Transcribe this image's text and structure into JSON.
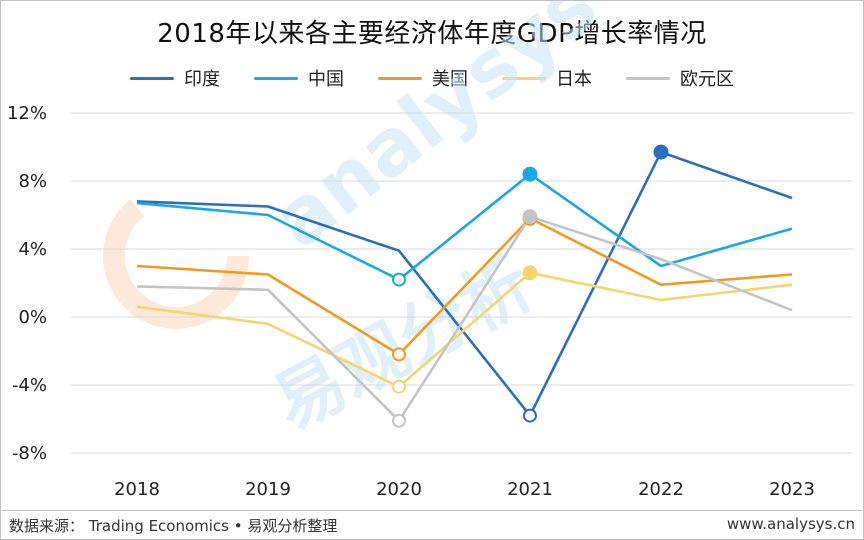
{
  "title": "2018年以来各主要经济体年度GDP增长率情况",
  "source_text": "数据来源：  Trading Economics • 易观分析整理",
  "site_text": "www.analysys.cn",
  "watermark": {
    "latin": "analysys",
    "cjk": "易观分析",
    "logo_color": "#fbe3cf"
  },
  "chart_data": {
    "type": "line",
    "title": "2018年以来各主要经济体年度GDP增长率情况",
    "xlabel": "",
    "ylabel": "",
    "categories": [
      "2018",
      "2019",
      "2020",
      "2021",
      "2022",
      "2023"
    ],
    "ylim": [
      -8,
      12
    ],
    "yticks": [
      -8,
      -4,
      0,
      4,
      8,
      12
    ],
    "ytick_labels": [
      "-8%",
      "-4%",
      "0%",
      "4%",
      "8%",
      "12%"
    ],
    "grid": "horizontal",
    "legend_position": "top",
    "series": [
      {
        "name": "印度",
        "color": "#2a6fbd",
        "values": [
          6.8,
          6.5,
          3.9,
          -5.8,
          9.7,
          7.0
        ],
        "markers": [
          {
            "index": 3,
            "style": "open"
          },
          {
            "index": 4,
            "style": "filled"
          }
        ]
      },
      {
        "name": "中国",
        "color": "#1aa7e6",
        "values": [
          6.7,
          6.0,
          2.2,
          8.4,
          3.0,
          5.2
        ],
        "markers": [
          {
            "index": 2,
            "style": "open"
          },
          {
            "index": 3,
            "style": "filled"
          }
        ]
      },
      {
        "name": "美国",
        "color": "#f29a1c",
        "values": [
          3.0,
          2.5,
          -2.2,
          5.8,
          1.9,
          2.5
        ],
        "markers": [
          {
            "index": 2,
            "style": "open"
          },
          {
            "index": 3,
            "style": "filled"
          }
        ]
      },
      {
        "name": "日本",
        "color": "#f7d46e",
        "values": [
          0.6,
          -0.4,
          -4.1,
          2.6,
          1.0,
          1.9
        ],
        "markers": [
          {
            "index": 2,
            "style": "open"
          },
          {
            "index": 3,
            "style": "filled"
          }
        ]
      },
      {
        "name": "欧元区",
        "color": "#c4c4c4",
        "values": [
          1.8,
          1.6,
          -6.1,
          5.9,
          3.4,
          0.4
        ],
        "markers": [
          {
            "index": 2,
            "style": "open"
          },
          {
            "index": 3,
            "style": "filled"
          }
        ]
      }
    ]
  }
}
